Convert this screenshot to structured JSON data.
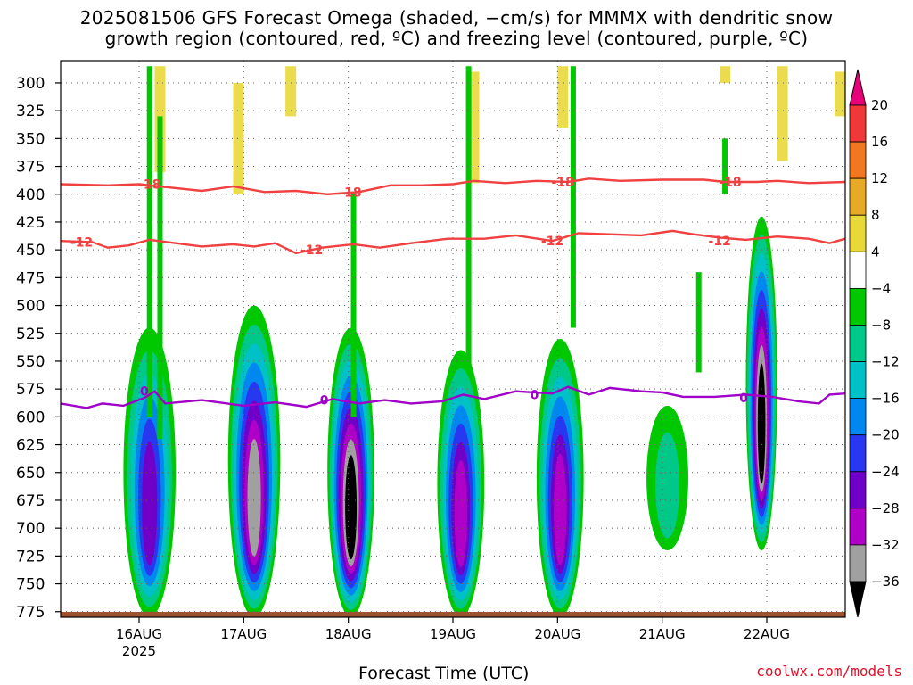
{
  "title_line1": "2025081506 GFS Forecast Omega (shaded, −cm/s) for MMMX with dendritic snow",
  "title_line2": "growth region (contoured, red, ºC) and freezing level (contoured, purple, ºC)",
  "credit": "coolwx.com/models",
  "colors": {
    "dgz_contour": "#f04040",
    "freezing_contour": "#a000c8",
    "ground": "#a0522d"
  },
  "chart_data": {
    "type": "heatmap",
    "title": "2025081506 GFS Forecast Omega (shaded, −cm/s) for MMMX with dendritic snow growth region (contoured, red, ºC) and freezing level (contoured, purple, ºC)",
    "xlabel": "Forecast Time (UTC)",
    "ylabel": "",
    "grid": true,
    "x_ticks": [
      "16AUG",
      "17AUG",
      "18AUG",
      "19AUG",
      "20AUG",
      "21AUG",
      "22AUG"
    ],
    "x_year_label": "2025",
    "x_range_days": [
      -0.75,
      6.75
    ],
    "y_ticks": [
      300,
      325,
      350,
      375,
      400,
      425,
      450,
      475,
      500,
      525,
      550,
      575,
      600,
      625,
      650,
      675,
      700,
      725,
      750,
      775
    ],
    "y_range": [
      280,
      780
    ],
    "colorbar": {
      "labels": [
        "20",
        "16",
        "12",
        "8",
        "4",
        "−4",
        "−8",
        "−12",
        "−16",
        "−20",
        "−24",
        "−28",
        "−32",
        "−36"
      ],
      "colors": [
        "#e8007a",
        "#f03838",
        "#f07820",
        "#e8a828",
        "#e8d838",
        "#ffffff",
        "#00c800",
        "#00c888",
        "#00c0c8",
        "#0088f0",
        "#2838f0",
        "#7000c8",
        "#b000c8",
        "#a0a0a0",
        "#000000"
      ]
    },
    "contours": [
      {
        "label": "-18",
        "color": "#f04040",
        "points": [
          [
            -0.75,
            391
          ],
          [
            -0.3,
            392
          ],
          [
            0.0,
            391
          ],
          [
            0.3,
            394
          ],
          [
            0.6,
            397
          ],
          [
            0.9,
            393
          ],
          [
            1.2,
            398
          ],
          [
            1.5,
            397
          ],
          [
            1.8,
            400
          ],
          [
            2.1,
            398
          ],
          [
            2.4,
            392
          ],
          [
            2.7,
            392
          ],
          [
            3.0,
            391
          ],
          [
            3.2,
            388
          ],
          [
            3.5,
            390
          ],
          [
            3.8,
            388
          ],
          [
            4.1,
            389
          ],
          [
            4.3,
            386
          ],
          [
            4.6,
            388
          ],
          [
            5.0,
            387
          ],
          [
            5.4,
            387
          ],
          [
            5.6,
            389
          ],
          [
            5.9,
            389
          ],
          [
            6.1,
            388
          ],
          [
            6.4,
            390
          ],
          [
            6.75,
            389
          ]
        ],
        "label_at": [
          [
            0.1,
            391
          ],
          [
            2.02,
            398
          ],
          [
            4.05,
            389
          ],
          [
            5.65,
            389
          ]
        ]
      },
      {
        "label": "-12",
        "color": "#f04040",
        "points": [
          [
            -0.75,
            442
          ],
          [
            -0.45,
            443
          ],
          [
            -0.3,
            448
          ],
          [
            -0.1,
            446
          ],
          [
            0.1,
            441
          ],
          [
            0.35,
            444
          ],
          [
            0.6,
            447
          ],
          [
            0.9,
            445
          ],
          [
            1.1,
            447
          ],
          [
            1.3,
            444
          ],
          [
            1.5,
            453
          ],
          [
            1.75,
            448
          ],
          [
            2.05,
            445
          ],
          [
            2.3,
            448
          ],
          [
            2.6,
            444
          ],
          [
            2.95,
            440
          ],
          [
            3.3,
            440
          ],
          [
            3.6,
            437
          ],
          [
            3.95,
            442
          ],
          [
            4.2,
            435
          ],
          [
            4.5,
            436
          ],
          [
            4.8,
            437
          ],
          [
            5.1,
            433
          ],
          [
            5.3,
            436
          ],
          [
            5.55,
            439
          ],
          [
            5.8,
            441
          ],
          [
            6.1,
            438
          ],
          [
            6.4,
            440
          ],
          [
            6.6,
            444
          ],
          [
            6.75,
            440
          ]
        ],
        "label_at": [
          [
            -0.55,
            443
          ],
          [
            1.65,
            450
          ],
          [
            3.95,
            442
          ],
          [
            5.55,
            442
          ]
        ]
      },
      {
        "label": "0",
        "color": "#a000c8",
        "points": [
          [
            -0.75,
            588
          ],
          [
            -0.5,
            592
          ],
          [
            -0.35,
            588
          ],
          [
            -0.15,
            590
          ],
          [
            0.05,
            583
          ],
          [
            0.15,
            577
          ],
          [
            0.25,
            588
          ],
          [
            0.6,
            585
          ],
          [
            1.0,
            590
          ],
          [
            1.3,
            587
          ],
          [
            1.6,
            591
          ],
          [
            1.85,
            584
          ],
          [
            2.1,
            588
          ],
          [
            2.35,
            585
          ],
          [
            2.6,
            588
          ],
          [
            2.9,
            586
          ],
          [
            3.1,
            580
          ],
          [
            3.3,
            584
          ],
          [
            3.6,
            577
          ],
          [
            3.95,
            579
          ],
          [
            4.1,
            573
          ],
          [
            4.3,
            580
          ],
          [
            4.5,
            574
          ],
          [
            4.8,
            577
          ],
          [
            5.0,
            578
          ],
          [
            5.2,
            582
          ],
          [
            5.5,
            582
          ],
          [
            5.8,
            580
          ],
          [
            6.05,
            582
          ],
          [
            6.3,
            586
          ],
          [
            6.5,
            588
          ],
          [
            6.6,
            580
          ],
          [
            6.75,
            579
          ]
        ],
        "label_at": [
          [
            0.05,
            577
          ],
          [
            1.77,
            585
          ],
          [
            3.78,
            580
          ],
          [
            5.78,
            583
          ]
        ]
      }
    ],
    "omega_features": [
      {
        "name": "updraft-16aug",
        "x": [
          -0.15,
          0.35
        ],
        "p": [
          520,
          780
        ],
        "min": -24
      },
      {
        "name": "updraft-17aug",
        "x": [
          0.85,
          1.35
        ],
        "p": [
          500,
          780
        ],
        "min": -32
      },
      {
        "name": "updraft-18aug",
        "x": [
          1.8,
          2.25
        ],
        "p": [
          520,
          780
        ],
        "min": -36
      },
      {
        "name": "updraft-19aug",
        "x": [
          2.85,
          3.3
        ],
        "p": [
          540,
          780
        ],
        "min": -28
      },
      {
        "name": "updraft-20aug",
        "x": [
          3.8,
          4.25
        ],
        "p": [
          530,
          780
        ],
        "min": -28
      },
      {
        "name": "updraft-21aug",
        "x": [
          4.85,
          5.25
        ],
        "p": [
          590,
          720
        ],
        "min": -8
      },
      {
        "name": "updraft-22aug",
        "x": [
          5.8,
          6.1
        ],
        "p": [
          420,
          720
        ],
        "min": -36
      }
    ]
  }
}
